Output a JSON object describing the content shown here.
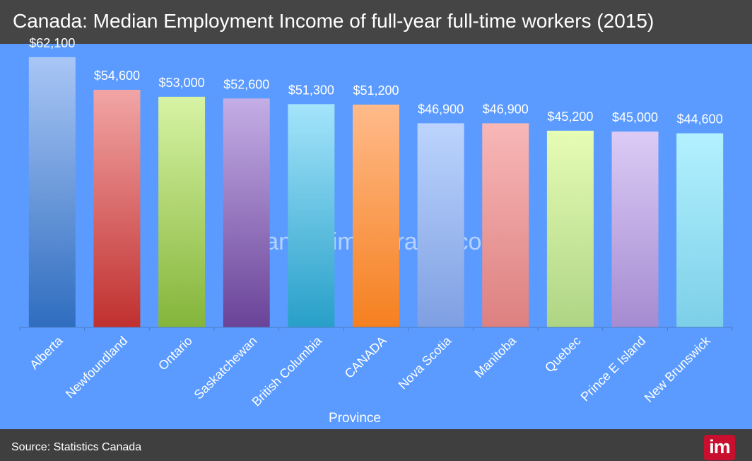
{
  "header": {
    "title": "Canada: Median Employment Income of full-year full-time workers (2015)"
  },
  "watermark": "canadaimmigrants.com",
  "footer": {
    "source": "Source: Statistics Canada",
    "logo_text": "im"
  },
  "colors": {
    "background": "#5b9bff",
    "title_bar": "#454545",
    "footer_bar": "#3f3f3f",
    "logo": "#c8102e"
  },
  "chart_data": {
    "type": "bar",
    "title": "",
    "xlabel": "Province",
    "ylabel": "",
    "ylim": [
      0,
      65000
    ],
    "grid": false,
    "legend": "none",
    "categories": [
      "Alberta",
      "Newfoundland",
      "Ontario",
      "Saskatchewan",
      "British Columbia",
      "CANADA",
      "Nova Scotia",
      "Manitoba",
      "Quebec",
      "Prince E Island",
      "New Brunswick"
    ],
    "values": [
      62100,
      54600,
      53000,
      52600,
      51300,
      51200,
      46900,
      46900,
      45200,
      45000,
      44600
    ],
    "value_labels": [
      "$62,100",
      "$54,600",
      "$53,000",
      "$52,600",
      "$51,300",
      "$51,200",
      "$46,900",
      "$46,900",
      "$45,200",
      "$45,000",
      "$44,600"
    ],
    "bar_colors": [
      [
        "#a9c6f5",
        "#2f6dbf"
      ],
      [
        "#f2a5a5",
        "#c0302f"
      ],
      [
        "#d7f3a4",
        "#84b53a"
      ],
      [
        "#c4aee6",
        "#6a4398"
      ],
      [
        "#a4e4fb",
        "#279fc8"
      ],
      [
        "#ffba8a",
        "#f5801f"
      ],
      [
        "#bcd4fd",
        "#7e9fe2"
      ],
      [
        "#f8b7b7",
        "#dd8080"
      ],
      [
        "#e6fcb5",
        "#aed584"
      ],
      [
        "#dbcbf5",
        "#a58bd1"
      ],
      [
        "#b3f1ff",
        "#7ccfe8"
      ]
    ]
  }
}
